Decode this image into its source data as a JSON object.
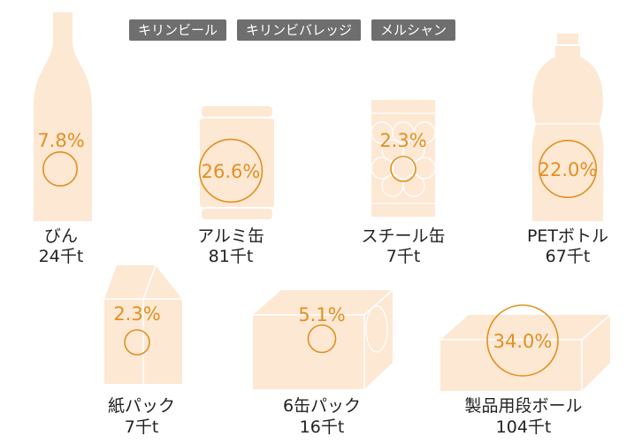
{
  "tags": [
    "キリンビール",
    "キリンビバレッジ",
    "メルシャン"
  ],
  "colors": {
    "shape_fill": "#fde8d4",
    "shape_stroke": "#ffffff",
    "accent": "#e3901f",
    "tag_bg": "#6e6e6e",
    "label_text": "#222222"
  },
  "items": [
    {
      "name": "びん",
      "percent": "7.8%",
      "amount": "24千t",
      "share": 7.8,
      "icon": "bottle-icon"
    },
    {
      "name": "アルミ缶",
      "percent": "26.6%",
      "amount": "81千t",
      "share": 26.6,
      "icon": "aluminum-can-icon"
    },
    {
      "name": "スチール缶",
      "percent": "2.3%",
      "amount": "7千t",
      "share": 2.3,
      "icon": "steel-can-icon"
    },
    {
      "name": "PETボトル",
      "percent": "22.0%",
      "amount": "67千t",
      "share": 22.0,
      "icon": "pet-bottle-icon"
    },
    {
      "name": "紙パック",
      "percent": "2.3%",
      "amount": "7千t",
      "share": 2.3,
      "icon": "paper-carton-icon"
    },
    {
      "name": "6缶パック",
      "percent": "5.1%",
      "amount": "16千t",
      "share": 5.1,
      "icon": "six-can-pack-icon"
    },
    {
      "name": "製品用段ボール",
      "percent": "34.0%",
      "amount": "104千t",
      "share": 34.0,
      "icon": "cardboard-box-icon"
    }
  ]
}
